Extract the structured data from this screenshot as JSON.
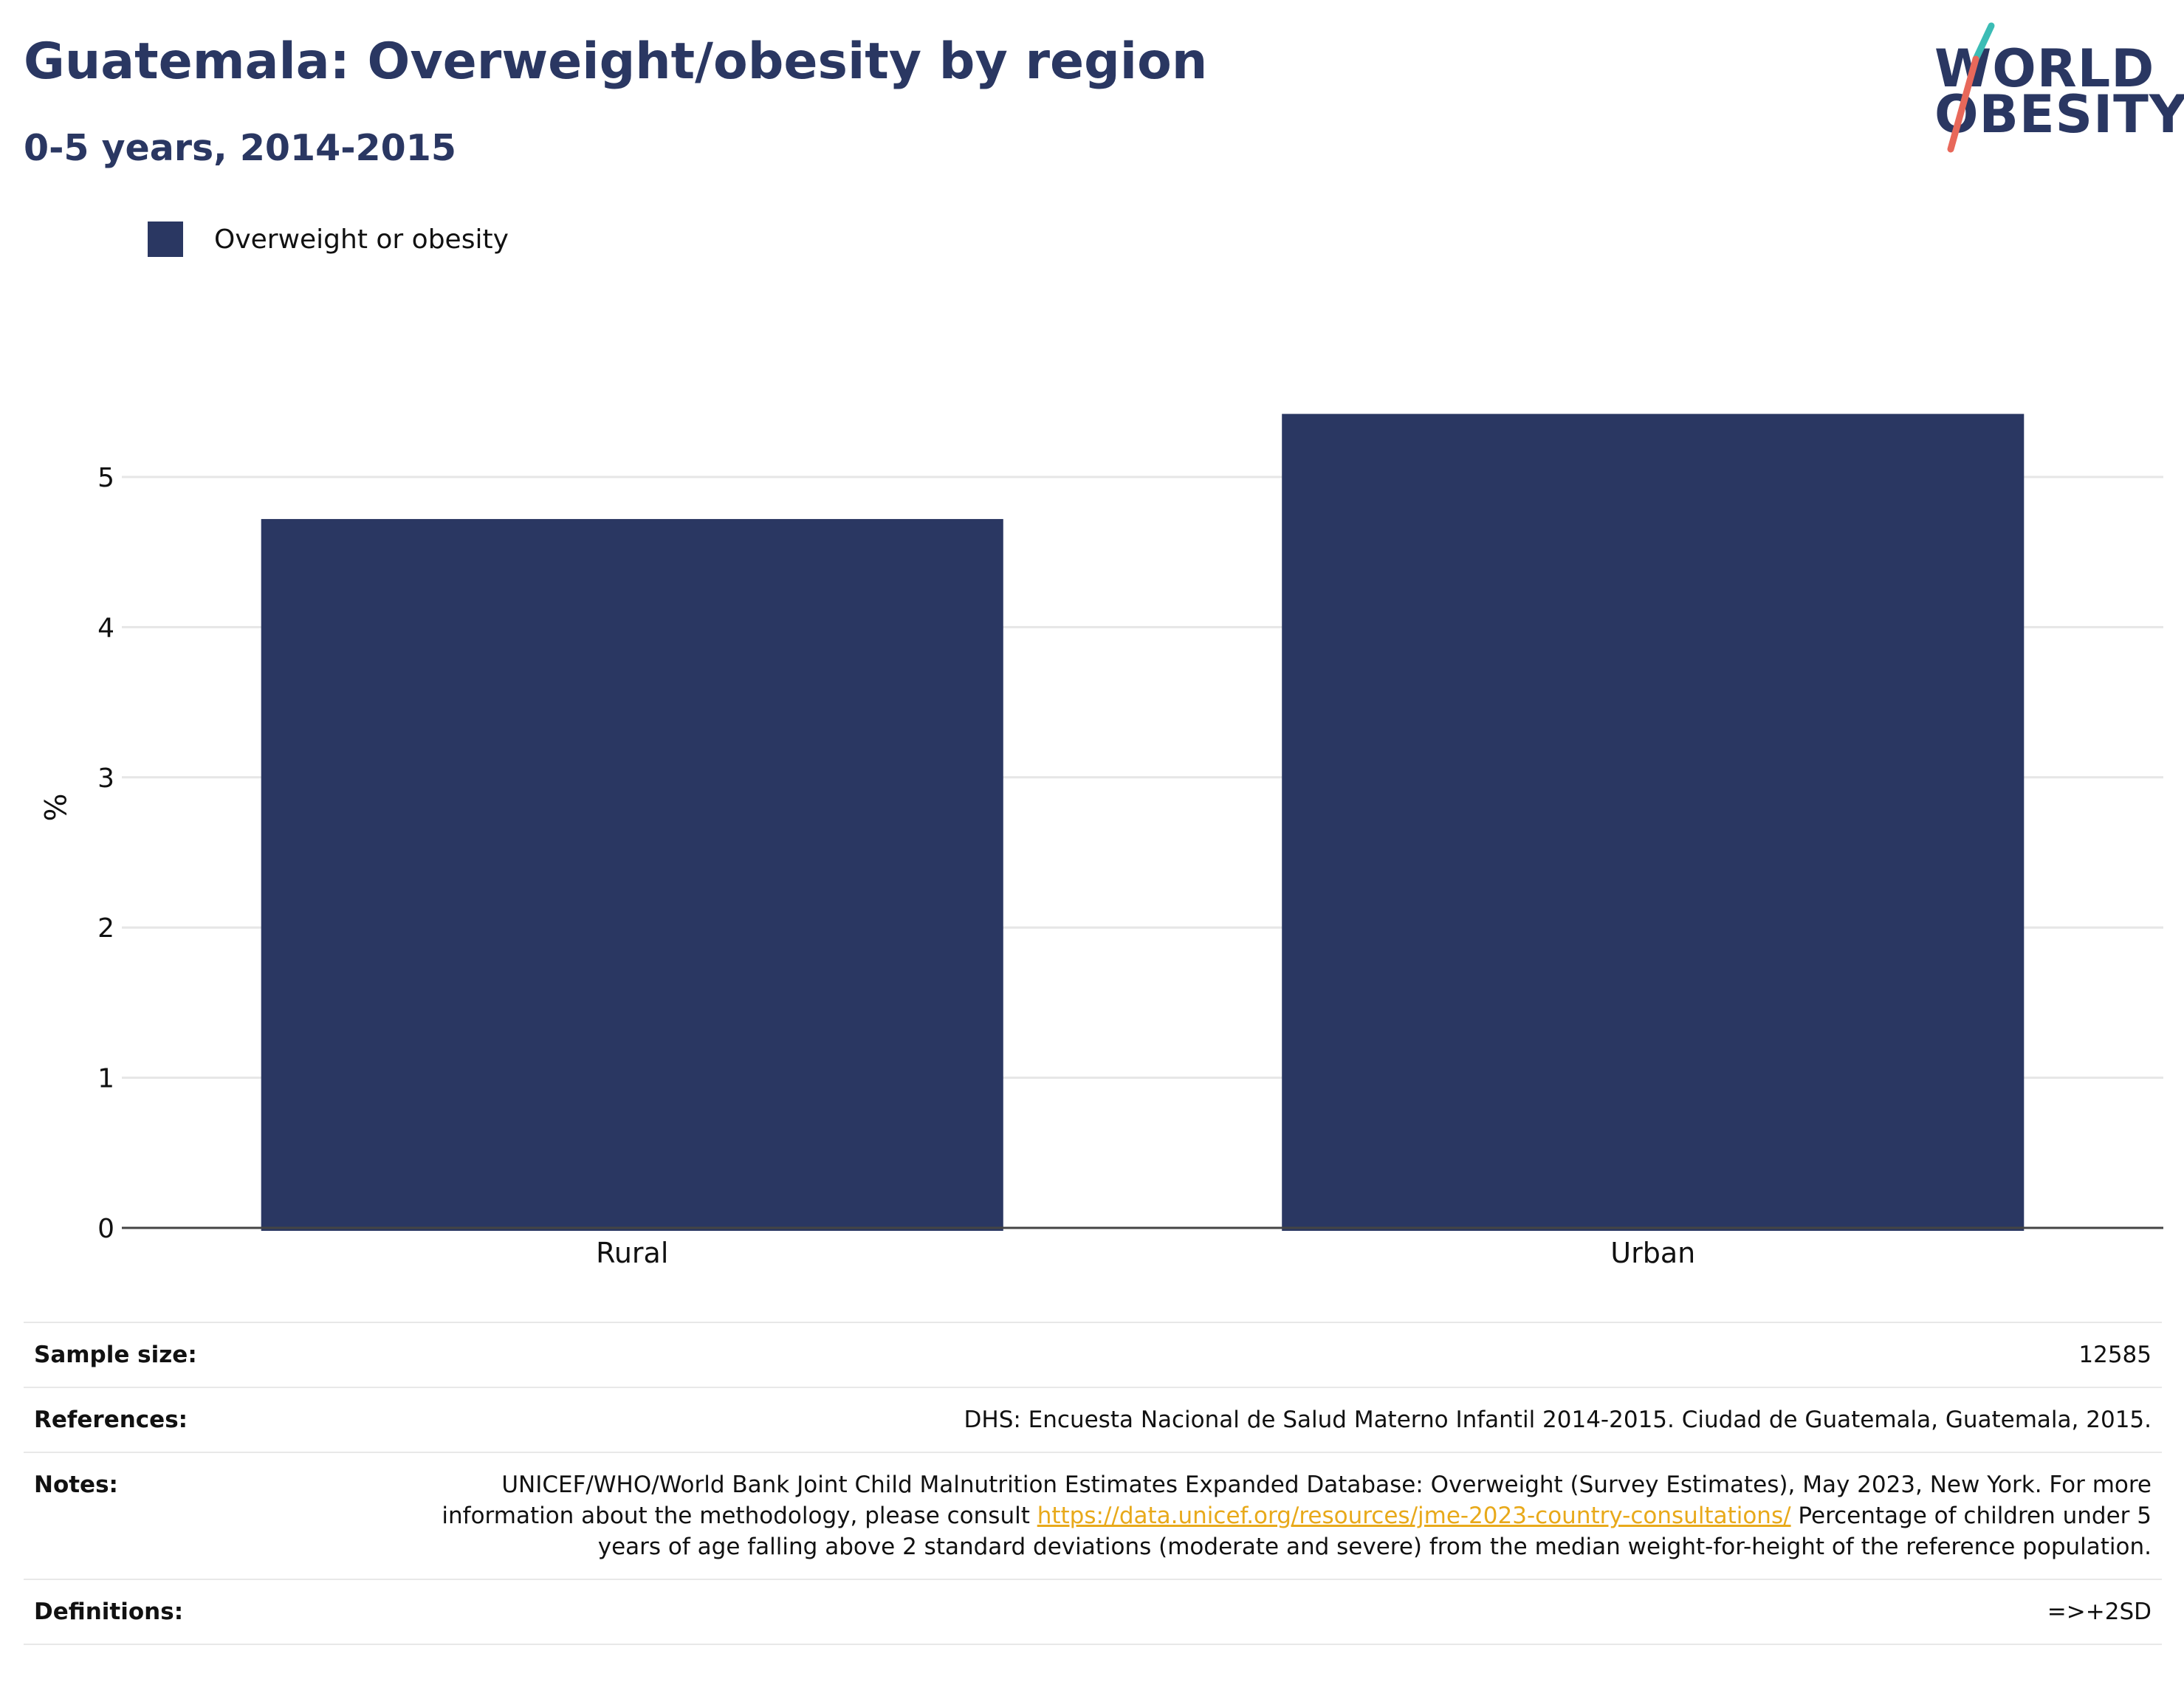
{
  "header": {
    "title": "Guatemala: Overweight/obesity by region",
    "subtitle": "0-5 years, 2014-2015"
  },
  "logo": {
    "line1": "WORLD",
    "line2": "OBESITY",
    "colors": {
      "text": "#2a3762",
      "slash_top": "#3bbcb5",
      "slash_bottom": "#e8685a"
    }
  },
  "colors": {
    "bar": "#2a3762",
    "grid": "#e6e6e6",
    "axis": "#444444",
    "link": "#e8a91a"
  },
  "chart_data": {
    "type": "bar",
    "categories": [
      "Rural",
      "Urban"
    ],
    "series": [
      {
        "name": "Overweight or obesity",
        "values": [
          4.72,
          5.42
        ]
      }
    ],
    "ylabel": "%",
    "ylim": [
      0,
      5.6
    ],
    "yticks": [
      0,
      1,
      2,
      3,
      4,
      5
    ],
    "grid": true,
    "legend_position": "top-left"
  },
  "info": {
    "sample_size": {
      "label": "Sample size:",
      "value": "12585"
    },
    "references": {
      "label": "References:",
      "value": "DHS: Encuesta Nacional de Salud Materno Infantil 2014-2015. Ciudad de Guatemala, Guatemala, 2015."
    },
    "notes": {
      "label": "Notes:",
      "text_before": "UNICEF/WHO/World Bank Joint Child Malnutrition Estimates Expanded Database: Overweight (Survey Estimates), May 2023, New York. For more information about the methodology, please consult ",
      "link": "https://data.unicef.org/resources/jme-2023-country-consultations/",
      "text_after": " Percentage of children under 5 years of age falling above 2 standard deviations (moderate and severe) from the median weight-for-height of the reference population."
    },
    "definitions": {
      "label": "Definitions:",
      "value": "=>+2SD"
    }
  }
}
